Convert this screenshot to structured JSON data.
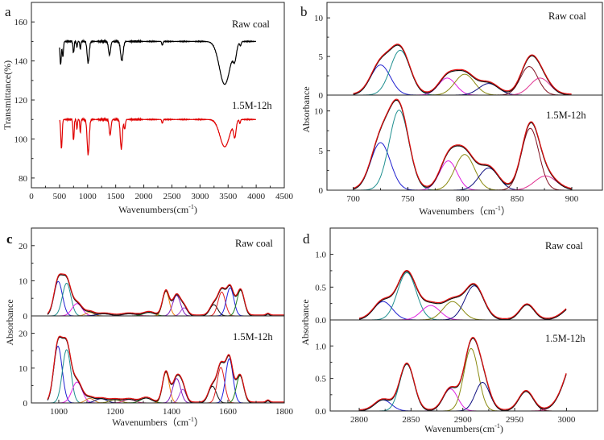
{
  "chart_data": [
    {
      "panel": "a",
      "type": "line",
      "xlabel": {
        "text": "Wavenumbers(cm",
        "sup": "-1",
        "suffix": ")"
      },
      "ylabel": "Transmittance(%)",
      "xlim": [
        0,
        4500
      ],
      "ylim": [
        75,
        170
      ],
      "xticks": [
        "0",
        "500",
        "1000",
        "1500",
        "2000",
        "2500",
        "3000",
        "3500",
        "4000",
        "4500"
      ],
      "yticks": [
        "80",
        "100",
        "120",
        "140",
        "160"
      ],
      "series": [
        {
          "name": "Raw coal",
          "color": "#000000",
          "baseline": 150,
          "x_range": [
            500,
            4000
          ],
          "dips": [
            [
              520,
              12,
              12
            ],
            [
              560,
              8,
              10
            ],
            [
              750,
              6,
              10
            ],
            [
              810,
              3,
              8
            ],
            [
              870,
              4,
              8
            ],
            [
              1010,
              11,
              18
            ],
            [
              1390,
              7,
              18
            ],
            [
              1610,
              10,
              22
            ],
            [
              2330,
              2,
              10
            ],
            [
              3440,
              22,
              95
            ],
            [
              3620,
              7,
              30
            ],
            [
              3720,
              2,
              12
            ]
          ]
        },
        {
          "name": "1.5M-12h",
          "color": "#e00000",
          "baseline": 110,
          "x_range": [
            500,
            4000
          ],
          "dips": [
            [
              535,
              15,
              12
            ],
            [
              750,
              11,
              10
            ],
            [
              810,
              5,
              8
            ],
            [
              870,
              7,
              8
            ],
            [
              1010,
              18,
              18
            ],
            [
              1400,
              8,
              16
            ],
            [
              1600,
              15,
              18
            ],
            [
              1660,
              5,
              12
            ],
            [
              2330,
              2,
              10
            ],
            [
              3440,
              14,
              85
            ],
            [
              3620,
              8,
              22
            ],
            [
              3710,
              2,
              10
            ]
          ]
        }
      ]
    },
    {
      "panel": "b",
      "type": "line",
      "xlabel": {
        "text": "Wavenumbers（cm",
        "sup": "-1",
        "suffix": "）"
      },
      "ylabel": "Absorbance",
      "xlim": [
        676,
        928
      ],
      "xticks": [
        "700",
        "750",
        "800",
        "850",
        "900"
      ],
      "subplots": [
        {
          "label": "Raw coal",
          "ylim": [
            0,
            12
          ],
          "yticks": [
            "0",
            "5",
            "10"
          ],
          "x_range": [
            700,
            900
          ],
          "components": [
            {
              "center": 725,
              "amplitude": 3.9,
              "sigma": 9,
              "color": "#2020d0"
            },
            {
              "center": 743,
              "amplitude": 5.8,
              "sigma": 9,
              "color": "#1f8f8f"
            },
            {
              "center": 786,
              "amplitude": 2.2,
              "sigma": 8,
              "color": "#e020e0"
            },
            {
              "center": 802,
              "amplitude": 2.7,
              "sigma": 9,
              "color": "#8a8a10"
            },
            {
              "center": 824,
              "amplitude": 1.5,
              "sigma": 9,
              "color": "#101080"
            },
            {
              "center": 861,
              "amplitude": 3.7,
              "sigma": 8,
              "color": "#801020"
            },
            {
              "center": 871,
              "amplitude": 2.2,
              "sigma": 9,
              "color": "#e03090"
            }
          ]
        },
        {
          "label": "1.5M-12h",
          "ylim": [
            0,
            12
          ],
          "yticks": [
            "0",
            "5",
            "10"
          ],
          "x_range": [
            700,
            900
          ],
          "components": [
            {
              "center": 725,
              "amplitude": 6.0,
              "sigma": 9,
              "color": "#2020d0"
            },
            {
              "center": 742,
              "amplitude": 10.1,
              "sigma": 9,
              "color": "#1f8f8f"
            },
            {
              "center": 787,
              "amplitude": 3.7,
              "sigma": 8,
              "color": "#e020e0"
            },
            {
              "center": 802,
              "amplitude": 4.5,
              "sigma": 9,
              "color": "#8a8a10"
            },
            {
              "center": 824,
              "amplitude": 2.8,
              "sigma": 9,
              "color": "#101080"
            },
            {
              "center": 862,
              "amplitude": 7.8,
              "sigma": 8,
              "color": "#801020"
            },
            {
              "center": 876,
              "amplitude": 1.8,
              "sigma": 10,
              "color": "#e03090"
            }
          ]
        }
      ]
    },
    {
      "panel": "c",
      "type": "line",
      "xlabel": {
        "text": "Wavenumbers（cm",
        "sup": "-1",
        "suffix": "）"
      },
      "ylabel": "Absorbance",
      "xlim": [
        903,
        1800
      ],
      "xticks": [
        "1000",
        "1200",
        "1400",
        "1600",
        "1800"
      ],
      "subplots": [
        {
          "label": "Raw coal",
          "ylim": [
            0,
            25
          ],
          "yticks": [
            "0",
            "10",
            "20"
          ],
          "x_range": [
            960,
            1800
          ],
          "components": [
            {
              "center": 998,
              "amplitude": 9.8,
              "sigma": 15,
              "color": "#2020d0"
            },
            {
              "center": 1028,
              "amplitude": 9.3,
              "sigma": 15,
              "color": "#1f8f8f"
            },
            {
              "center": 1065,
              "amplitude": 3.5,
              "sigma": 18,
              "color": "#e020e0"
            },
            {
              "center": 1110,
              "amplitude": 1.0,
              "sigma": 15,
              "color": "#d08020"
            },
            {
              "center": 1160,
              "amplitude": 0.6,
              "sigma": 25,
              "color": "#101080"
            },
            {
              "center": 1250,
              "amplitude": 0.6,
              "sigma": 25,
              "color": "#e03090"
            },
            {
              "center": 1320,
              "amplitude": 1.0,
              "sigma": 20,
              "color": "#208020"
            },
            {
              "center": 1380,
              "amplitude": 7.0,
              "sigma": 12,
              "color": "#f08010"
            },
            {
              "center": 1418,
              "amplitude": 5.8,
              "sigma": 14,
              "color": "#8020c0"
            },
            {
              "center": 1445,
              "amplitude": 2.3,
              "sigma": 12,
              "color": "#a040d0"
            },
            {
              "center": 1550,
              "amplitude": 3.2,
              "sigma": 14,
              "color": "#101010"
            },
            {
              "center": 1578,
              "amplitude": 6.8,
              "sigma": 13,
              "color": "#e02020"
            },
            {
              "center": 1608,
              "amplitude": 8.0,
              "sigma": 13,
              "color": "#2020e0"
            },
            {
              "center": 1645,
              "amplitude": 7.3,
              "sigma": 13,
              "color": "#208020"
            },
            {
              "center": 1742,
              "amplitude": 0.5,
              "sigma": 6,
              "color": "#101080"
            }
          ]
        },
        {
          "label": "1.5M-12h",
          "ylim": [
            0,
            25
          ],
          "yticks": [
            "0",
            "10",
            "20"
          ],
          "x_range": [
            960,
            1800
          ],
          "components": [
            {
              "center": 997,
              "amplitude": 16.3,
              "sigma": 15,
              "color": "#2020d0"
            },
            {
              "center": 1028,
              "amplitude": 15.3,
              "sigma": 15,
              "color": "#1f8f8f"
            },
            {
              "center": 1065,
              "amplitude": 6.0,
              "sigma": 18,
              "color": "#e020e0"
            },
            {
              "center": 1110,
              "amplitude": 1.3,
              "sigma": 15,
              "color": "#d08020"
            },
            {
              "center": 1150,
              "amplitude": 1.2,
              "sigma": 20,
              "color": "#101080"
            },
            {
              "center": 1200,
              "amplitude": 0.9,
              "sigma": 20,
              "color": "#8a8a10"
            },
            {
              "center": 1250,
              "amplitude": 1.0,
              "sigma": 20,
              "color": "#e03090"
            },
            {
              "center": 1310,
              "amplitude": 1.4,
              "sigma": 20,
              "color": "#208020"
            },
            {
              "center": 1380,
              "amplitude": 8.8,
              "sigma": 12,
              "color": "#f08010"
            },
            {
              "center": 1418,
              "amplitude": 7.0,
              "sigma": 14,
              "color": "#8020c0"
            },
            {
              "center": 1440,
              "amplitude": 3.9,
              "sigma": 12,
              "color": "#a040d0"
            },
            {
              "center": 1545,
              "amplitude": 4.8,
              "sigma": 14,
              "color": "#101010"
            },
            {
              "center": 1575,
              "amplitude": 10.2,
              "sigma": 13,
              "color": "#e02020"
            },
            {
              "center": 1605,
              "amplitude": 12.7,
              "sigma": 13,
              "color": "#2020e0"
            },
            {
              "center": 1643,
              "amplitude": 7.8,
              "sigma": 13,
              "color": "#208020"
            },
            {
              "center": 1742,
              "amplitude": 0.6,
              "sigma": 6,
              "color": "#101080"
            }
          ]
        }
      ]
    },
    {
      "panel": "d",
      "type": "line",
      "xlabel": {
        "text": "Wavenumbers(cm",
        "sup": "-1",
        "suffix": ")"
      },
      "ylabel": "Absorbance",
      "xlim": [
        2772,
        3030
      ],
      "xticks": [
        "2800",
        "2850",
        "2900",
        "2950",
        "3000"
      ],
      "subplots": [
        {
          "label": "Raw coal",
          "ylim": [
            0,
            1.4
          ],
          "yticks": [
            "0.0",
            "0.5",
            "1.0"
          ],
          "x_range": [
            2800,
            3000
          ],
          "components": [
            {
              "center": 2823,
              "amplitude": 0.28,
              "sigma": 9,
              "color": "#2020d0"
            },
            {
              "center": 2846,
              "amplitude": 0.72,
              "sigma": 9,
              "color": "#1f8f8f"
            },
            {
              "center": 2869,
              "amplitude": 0.22,
              "sigma": 9,
              "color": "#e020e0"
            },
            {
              "center": 2890,
              "amplitude": 0.28,
              "sigma": 9,
              "color": "#8a8a10"
            },
            {
              "center": 2911,
              "amplitude": 0.52,
              "sigma": 9,
              "color": "#101080"
            },
            {
              "center": 2962,
              "amplitude": 0.23,
              "sigma": 7,
              "color": "#801020"
            },
            {
              "center": 3008,
              "amplitude": 0.22,
              "sigma": 10,
              "color": "#e03090"
            }
          ]
        },
        {
          "label": "1.5M-12h",
          "ylim": [
            0,
            1.4
          ],
          "yticks": [
            "0.0",
            "0.5",
            "1.0"
          ],
          "x_range": [
            2800,
            3000
          ],
          "components": [
            {
              "center": 2823,
              "amplitude": 0.17,
              "sigma": 8,
              "color": "#2020d0"
            },
            {
              "center": 2846,
              "amplitude": 0.72,
              "sigma": 7,
              "color": "#1f8f8f"
            },
            {
              "center": 2888,
              "amplitude": 0.34,
              "sigma": 7,
              "color": "#e020e0"
            },
            {
              "center": 2908,
              "amplitude": 0.96,
              "sigma": 7,
              "color": "#8a8a10"
            },
            {
              "center": 2919,
              "amplitude": 0.44,
              "sigma": 7,
              "color": "#101080"
            },
            {
              "center": 2961,
              "amplitude": 0.3,
              "sigma": 7,
              "color": "#801020"
            },
            {
              "center": 3012,
              "amplitude": 0.95,
              "sigma": 12,
              "color": "#e03090"
            }
          ]
        }
      ]
    }
  ]
}
